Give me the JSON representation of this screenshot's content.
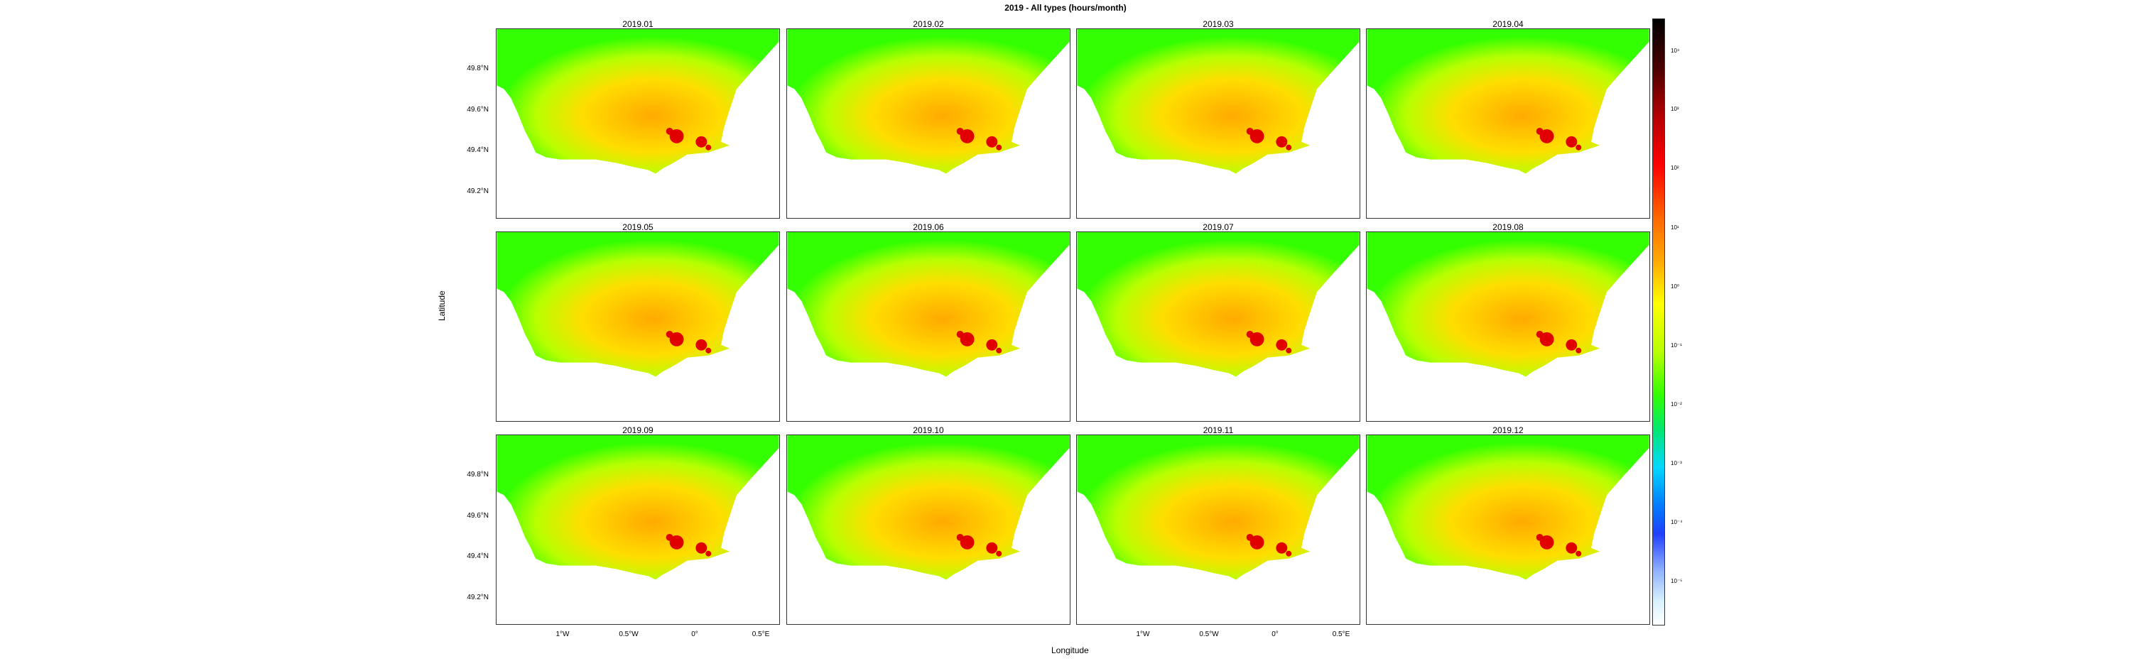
{
  "title": "2019 - All types (hours/month)",
  "panels": [
    "2019.01",
    "2019.02",
    "2019.03",
    "2019.04",
    "2019.05",
    "2019.06",
    "2019.07",
    "2019.08",
    "2019.09",
    "2019.10",
    "2019.11",
    "2019.12"
  ],
  "y_ticks": [
    "49.8°N",
    "49.6°N",
    "49.4°N",
    "49.2°N"
  ],
  "x_ticks": [
    "1°W",
    "0.5°W",
    "0°",
    "0.5°E"
  ],
  "xlabel": "Longitude",
  "ylabel": "Latitude",
  "colorbar_labels": [
    "10⁴",
    "10³",
    "10²",
    "10¹",
    "10⁰",
    "10⁻¹",
    "10⁻²",
    "10⁻³",
    "10⁻⁴",
    "10⁻⁵"
  ],
  "colors": {
    "land": "#ffffff",
    "low": "#33ff00",
    "mid": "#ffaa00",
    "high": "#ff0000",
    "extreme": "#000000"
  }
}
